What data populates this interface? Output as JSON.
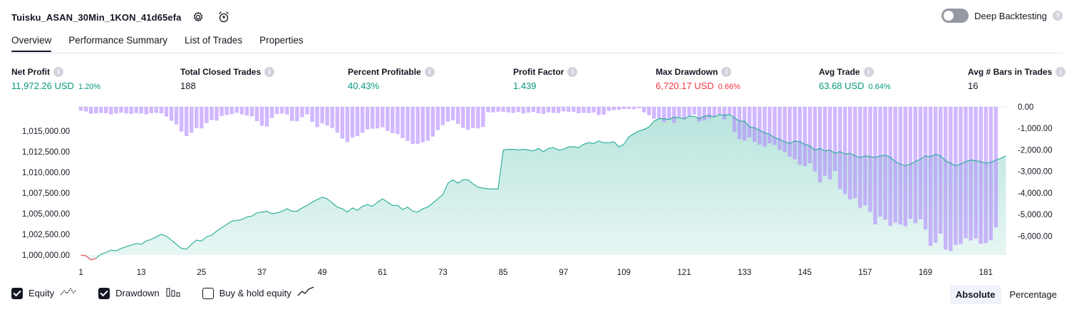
{
  "header": {
    "title": "Tuisku_ASAN_30Min_1KON_41d65efa",
    "settings_icon": "gear-icon",
    "alert_icon": "alarm-clock-plus-icon"
  },
  "deep_backtesting": {
    "label": "Deep Backtesting",
    "enabled": false
  },
  "tabs": [
    {
      "label": "Overview",
      "active": true
    },
    {
      "label": "Performance Summary",
      "active": false
    },
    {
      "label": "List of Trades",
      "active": false
    },
    {
      "label": "Properties",
      "active": false
    }
  ],
  "metrics": [
    {
      "label": "Net Profit",
      "value": "11,972.26 USD",
      "sub": "1.20%",
      "color": "green"
    },
    {
      "label": "Total Closed Trades",
      "value": "188",
      "sub": "",
      "color": "black"
    },
    {
      "label": "Percent Profitable",
      "value": "40.43%",
      "sub": "",
      "color": "green"
    },
    {
      "label": "Profit Factor",
      "value": "1.439",
      "sub": "",
      "color": "green"
    },
    {
      "label": "Max Drawdown",
      "value": "6,720.17 USD",
      "sub": "0.66%",
      "color": "red"
    },
    {
      "label": "Avg Trade",
      "value": "63.68 USD",
      "sub": "0.64%",
      "color": "green"
    },
    {
      "label": "Avg # Bars in Trades",
      "value": "16",
      "sub": "",
      "color": "black"
    }
  ],
  "chart_data": {
    "type": "area",
    "x_ticks": [
      "1",
      "13",
      "25",
      "37",
      "49",
      "61",
      "73",
      "85",
      "97",
      "109",
      "121",
      "133",
      "145",
      "157",
      "169",
      "181"
    ],
    "y_left_ticks": [
      "1,015,000.00",
      "1,012,500.00",
      "1,010,000.00",
      "1,007,500.00",
      "1,005,000.00",
      "1,002,500.00",
      "1,000,000.00"
    ],
    "y_right_ticks": [
      "0.00",
      "-1,000.00",
      "-2,000.00",
      "-3,000.00",
      "-4,000.00",
      "-5,000.00",
      "-6,000.00"
    ],
    "equity_ylim": [
      1000000,
      1017500
    ],
    "drawdown_ylim": [
      -6720,
      0
    ],
    "colors": {
      "equity_line": "#22ab94",
      "equity_fill": "#22ab94",
      "equity_negative": "#f7525f",
      "drawdown": "#b388ff"
    },
    "series": [
      {
        "name": "Equity",
        "values": [
          1000000,
          999900,
          999400,
          999600,
          1000100,
          1000300,
          1000600,
          1000500,
          1000800,
          1001000,
          1001200,
          1001400,
          1001300,
          1001700,
          1001900,
          1002200,
          1002500,
          1002300,
          1001800,
          1001300,
          1000800,
          1000700,
          1001300,
          1001800,
          1001700,
          1002200,
          1002400,
          1002900,
          1003300,
          1003700,
          1004100,
          1004200,
          1004300,
          1004600,
          1004700,
          1005100,
          1005200,
          1005300,
          1005000,
          1005100,
          1005300,
          1005600,
          1005300,
          1005300,
          1005700,
          1006000,
          1006400,
          1006700,
          1007000,
          1006800,
          1006300,
          1005800,
          1005600,
          1005200,
          1005700,
          1005400,
          1005900,
          1006100,
          1005900,
          1006400,
          1006800,
          1006400,
          1006000,
          1006000,
          1005500,
          1005800,
          1005300,
          1005200,
          1005600,
          1005800,
          1006300,
          1006800,
          1007300,
          1008700,
          1009100,
          1008700,
          1009100,
          1009100,
          1008600,
          1008200,
          1008100,
          1008000,
          1008000,
          1008000,
          1012700,
          1012800,
          1012800,
          1012700,
          1012800,
          1012700,
          1012600,
          1012900,
          1012500,
          1012900,
          1013000,
          1012700,
          1012800,
          1013100,
          1013100,
          1013000,
          1013400,
          1013600,
          1013500,
          1013800,
          1013600,
          1013600,
          1013700,
          1013100,
          1013400,
          1014300,
          1014700,
          1015000,
          1015200,
          1015500,
          1016200,
          1016500,
          1016500,
          1016400,
          1016700,
          1016600,
          1016500,
          1016800,
          1016800,
          1016500,
          1016800,
          1016900,
          1016700,
          1017000,
          1016900,
          1017000,
          1016600,
          1016200,
          1016200,
          1015500,
          1015400,
          1015100,
          1014800,
          1014600,
          1014200,
          1014000,
          1013700,
          1013500,
          1013800,
          1013700,
          1013400,
          1013200,
          1012700,
          1012900,
          1012600,
          1012700,
          1012300,
          1012500,
          1012200,
          1012300,
          1012000,
          1011800,
          1012000,
          1011900,
          1011800,
          1012000,
          1012100,
          1011800,
          1011300,
          1011000,
          1010800,
          1011000,
          1011300,
          1011600,
          1012000,
          1011900,
          1012200,
          1012000,
          1011400,
          1011100,
          1010800,
          1011000,
          1011300,
          1011500,
          1011400,
          1011300,
          1011100,
          1011200,
          1011500,
          1011700,
          1012000
        ]
      },
      {
        "name": "Drawdown",
        "values": [
          -180,
          -220,
          -320,
          -310,
          -280,
          -300,
          -350,
          -310,
          -270,
          -310,
          -330,
          -290,
          -310,
          -350,
          -300,
          -280,
          -300,
          -450,
          -650,
          -820,
          -1150,
          -1360,
          -1200,
          -980,
          -1000,
          -760,
          -610,
          -640,
          -420,
          -380,
          -340,
          -280,
          -350,
          -400,
          -440,
          -660,
          -880,
          -920,
          -520,
          -330,
          -310,
          -350,
          -660,
          -670,
          -480,
          -350,
          -700,
          -940,
          -770,
          -870,
          -980,
          -1200,
          -1470,
          -1640,
          -1430,
          -1360,
          -1210,
          -1050,
          -1020,
          -1000,
          -950,
          -1120,
          -1220,
          -1270,
          -1450,
          -1580,
          -1720,
          -1730,
          -1650,
          -1570,
          -1380,
          -1080,
          -850,
          -690,
          -630,
          -790,
          -980,
          -1070,
          -980,
          -1000,
          -930,
          -250,
          -260,
          -230,
          -230,
          -260,
          -280,
          -240,
          -310,
          -270,
          -240,
          -300,
          -330,
          -260,
          -280,
          -290,
          -210,
          -230,
          -230,
          -300,
          -280,
          -290,
          -260,
          -380,
          -360,
          -190,
          -150,
          -140,
          -100,
          -100,
          -110,
          -70,
          -260,
          -390,
          -550,
          -530,
          -710,
          -600,
          -750,
          -480,
          -580,
          -420,
          -350,
          -680,
          -620,
          -530,
          -450,
          -350,
          -580,
          -400,
          -1160,
          -1500,
          -1560,
          -1420,
          -1630,
          -1760,
          -1850,
          -1700,
          -1780,
          -2010,
          -2100,
          -2320,
          -2440,
          -2690,
          -2750,
          -2620,
          -3000,
          -3510,
          -3200,
          -3380,
          -2980,
          -3820,
          -4050,
          -4300,
          -4240,
          -4690,
          -4580,
          -4880,
          -5460,
          -5100,
          -5240,
          -5530,
          -5380,
          -5470,
          -5550,
          -5210,
          -5410,
          -5220,
          -5700,
          -6460,
          -6320,
          -5890,
          -6630,
          -6700,
          -6420,
          -6380,
          -6110,
          -6210,
          -6120,
          -6360,
          -6330,
          -6200,
          -5610
        ]
      }
    ]
  },
  "legend": [
    {
      "label": "Equity",
      "checked": true,
      "icon": "equity-line-icon"
    },
    {
      "label": "Drawdown",
      "checked": true,
      "icon": "drawdown-bars-icon"
    },
    {
      "label": "Buy & hold equity",
      "checked": false,
      "icon": "buy-hold-line-icon"
    }
  ],
  "view_modes": [
    {
      "label": "Absolute",
      "active": true
    },
    {
      "label": "Percentage",
      "active": false
    }
  ]
}
